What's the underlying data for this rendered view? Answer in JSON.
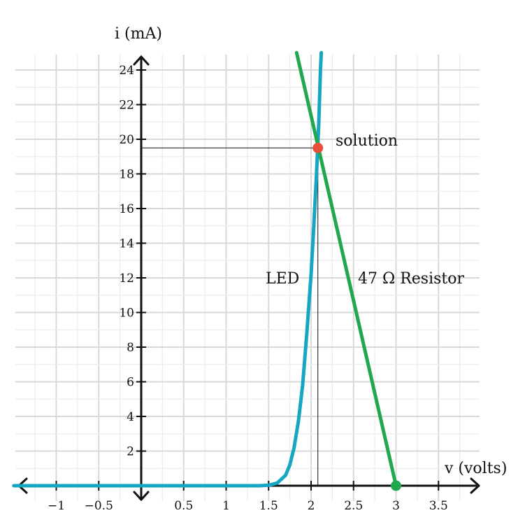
{
  "chart_data": {
    "type": "line",
    "title": "",
    "xlabel": "v (volts)",
    "ylabel": "i (mA)",
    "xlim": [
      -1.5,
      4.0
    ],
    "ylim": [
      -1.5,
      25.0
    ],
    "grid": true,
    "x_ticks": [
      {
        "value": -1,
        "label": "−1"
      },
      {
        "value": -0.5,
        "label": "−0.5"
      },
      {
        "value": 0.5,
        "label": "0.5"
      },
      {
        "value": 1,
        "label": "1"
      },
      {
        "value": 1.5,
        "label": "1.5"
      },
      {
        "value": 2,
        "label": "2"
      },
      {
        "value": 2.5,
        "label": "2.5"
      },
      {
        "value": 3,
        "label": "3"
      },
      {
        "value": 3.5,
        "label": "3.5"
      }
    ],
    "y_ticks": [
      {
        "value": 2,
        "label": "2"
      },
      {
        "value": 4,
        "label": "4"
      },
      {
        "value": 6,
        "label": "6"
      },
      {
        "value": 8,
        "label": "8"
      },
      {
        "value": 10,
        "label": "10"
      },
      {
        "value": 12,
        "label": "12"
      },
      {
        "value": 14,
        "label": "14"
      },
      {
        "value": 16,
        "label": "16"
      },
      {
        "value": 18,
        "label": "18"
      },
      {
        "value": 20,
        "label": "20"
      },
      {
        "value": 22,
        "label": "22"
      },
      {
        "value": 24,
        "label": "24"
      }
    ],
    "series": [
      {
        "name": "LED",
        "color": "#17a5c4",
        "points": [
          [
            -1.5,
            0
          ],
          [
            1.4,
            0
          ],
          [
            1.5,
            0.03
          ],
          [
            1.6,
            0.15
          ],
          [
            1.7,
            0.6
          ],
          [
            1.75,
            1.2
          ],
          [
            1.8,
            2.2
          ],
          [
            1.85,
            3.7
          ],
          [
            1.9,
            5.8
          ],
          [
            1.95,
            8.8
          ],
          [
            2.0,
            12.2
          ],
          [
            2.03,
            14.8
          ],
          [
            2.06,
            17.6
          ],
          [
            2.09,
            20.8
          ],
          [
            2.11,
            24.0
          ],
          [
            2.12,
            25.0
          ]
        ]
      },
      {
        "name": "47 Ω Resistor",
        "color": "#21a84e",
        "points": [
          [
            1.83,
            25.0
          ],
          [
            3.0,
            0
          ]
        ]
      }
    ],
    "solution_point": {
      "v": 2.08,
      "i": 19.5,
      "label": "solution",
      "color": "#e8503a"
    },
    "resistor_endpoint": {
      "v": 3.0,
      "i": 0,
      "color": "#21a84e"
    },
    "annotations": {
      "led_label": "LED",
      "resistor_label": "47 Ω Resistor",
      "solution_label": "solution",
      "x_axis_title": "v (volts)",
      "y_axis_title": "i (mA)"
    }
  }
}
